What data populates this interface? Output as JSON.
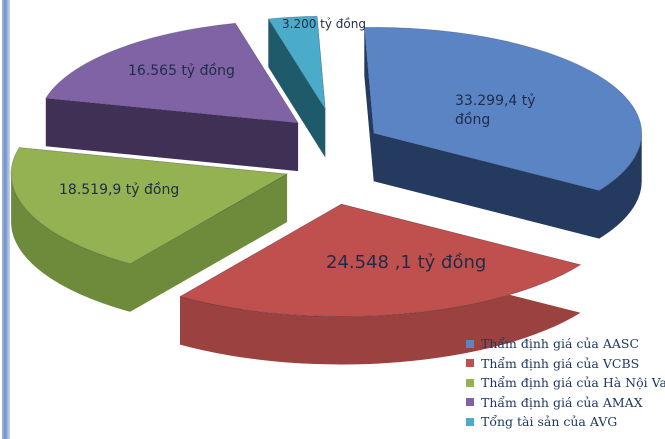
{
  "chart_data": {
    "type": "pie",
    "style": "3d-exploded",
    "title": "",
    "unit": "tỷ đồng",
    "start_angle_deg": -92,
    "direction": "clockwise",
    "legend_position": "bottom-right",
    "label_color": "#1f2c49",
    "legend_text_color": "#1f3864",
    "slices": [
      {
        "label": "Thẩm định giá của AASC",
        "value": 33299.4,
        "data_label": "33.299,4 tỷ đồng",
        "color": "#5b84c4",
        "side_color": "#243a5e"
      },
      {
        "label": "Thẩm định giá của  VCBS",
        "value": 24548.1,
        "data_label": "24.548 ,1 tỷ đồng",
        "color": "#c0504d",
        "side_color": "#9b413f"
      },
      {
        "label": "Thẩm định giá của Hà Nội Valu",
        "value": 18519.9,
        "data_label": "18.519,9 tỷ đồng",
        "color": "#94b251",
        "side_color": "#6e8a3b"
      },
      {
        "label": "Thẩm định giá của AMAX",
        "value": 16565,
        "data_label": "16.565 tỷ đồng",
        "color": "#8063a4",
        "side_color": "#413056"
      },
      {
        "label": "Tổng tài sản của AVG",
        "value": 3200,
        "data_label": "3.200 tỷ đồng",
        "color": "#4aacc9",
        "side_color": "#1f5a6b"
      }
    ]
  }
}
